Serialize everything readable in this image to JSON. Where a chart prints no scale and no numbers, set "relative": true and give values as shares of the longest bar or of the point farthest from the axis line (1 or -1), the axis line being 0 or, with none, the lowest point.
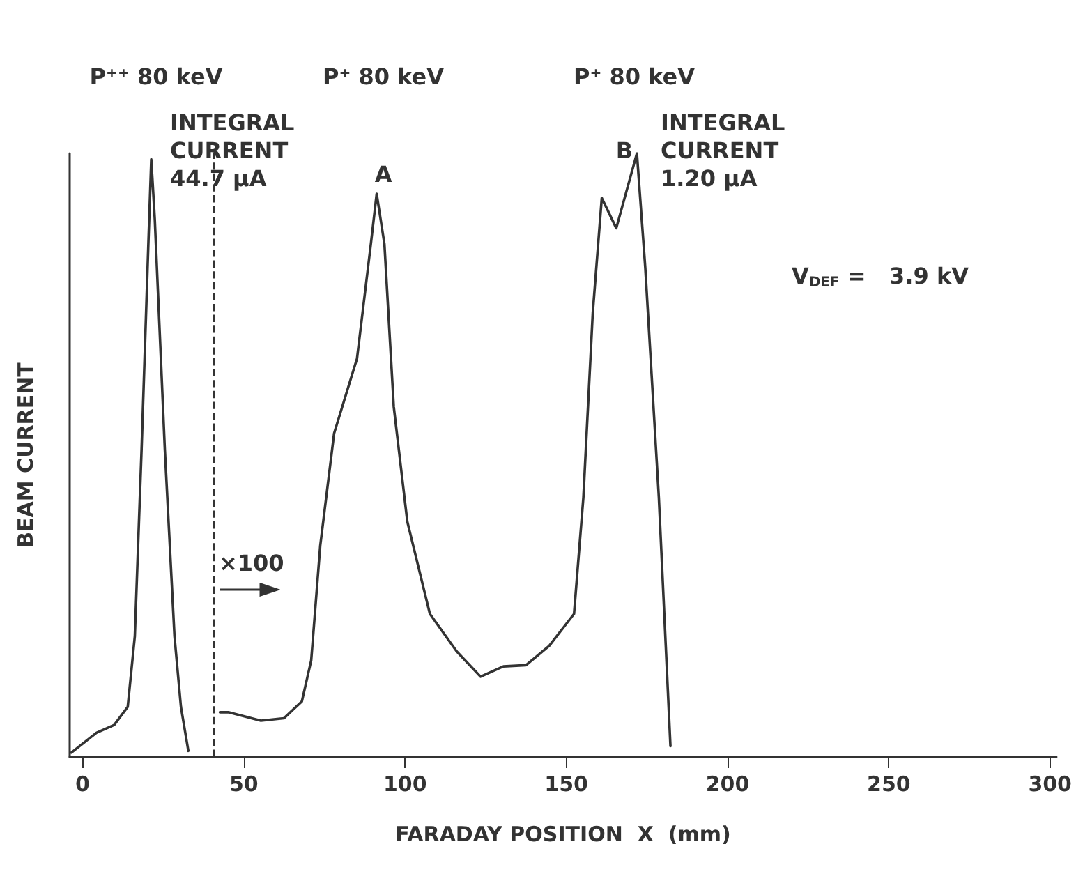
{
  "chart_data": {
    "type": "line",
    "relative": true,
    "xlabel": "FARADAY POSITION  X  (mm)",
    "ylabel": "BEAM CURRENT",
    "xlim": [
      -4,
      302
    ],
    "xticks": [
      0,
      50,
      100,
      150,
      200,
      250,
      300
    ],
    "grid": false,
    "marker": "none",
    "line_style": "solid",
    "series": [
      {
        "color": "#333333",
        "x": [
          -3.5,
          4.3,
          9.8,
          14,
          16.2,
          18.3,
          20.4,
          21.3,
          22.4,
          25.5,
          28.5,
          30.5,
          32.8
        ],
        "values": [
          0.007,
          0.04,
          0.053,
          0.083,
          0.2,
          0.51,
          0.85,
          0.99,
          0.89,
          0.51,
          0.2,
          0.083,
          0.01
        ]
      },
      {
        "color": "#333333",
        "x": [
          42.6,
          45.4,
          55.3,
          62.4,
          68,
          70.9,
          73.7,
          78,
          85.1,
          89.4,
          91.2,
          93.6,
          96.5,
          100.7,
          107.7,
          116,
          123.4,
          130.5,
          137.5,
          144.7,
          152.4,
          155.3,
          158.2,
          161,
          165.5,
          171.9,
          174.5,
          178.7,
          182.3
        ],
        "values": [
          0.074,
          0.074,
          0.06,
          0.064,
          0.092,
          0.16,
          0.35,
          0.536,
          0.66,
          0.85,
          0.933,
          0.85,
          0.58,
          0.39,
          0.237,
          0.175,
          0.133,
          0.15,
          0.152,
          0.184,
          0.237,
          0.43,
          0.735,
          0.926,
          0.876,
          1,
          0.81,
          0.43,
          0.018
        ]
      }
    ],
    "ref_lines": [
      {
        "axis": "x",
        "value": 40.5,
        "color": "#333333",
        "line_style": "dashed"
      }
    ],
    "annotations": [
      "P⁺⁺ 80 keV",
      "P⁺ 80 keV",
      "P⁺ 80 keV",
      "INTEGRAL CURRENT 44.7 µA",
      "A",
      "B",
      "INTEGRAL CURRENT 1.20 µA",
      "V$_{DEF}$ =   3.9 kV",
      "×100"
    ]
  }
}
